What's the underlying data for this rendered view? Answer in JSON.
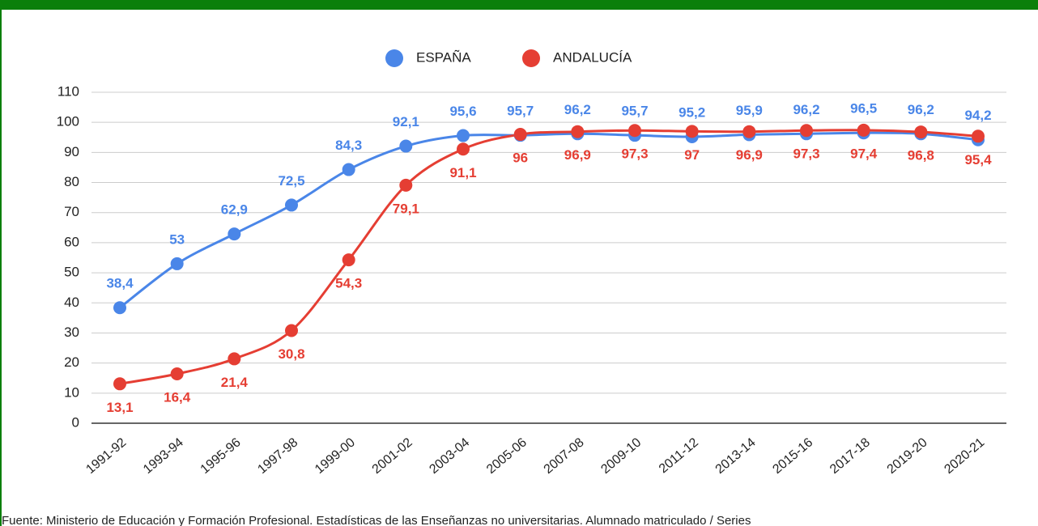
{
  "chart_data": {
    "type": "line",
    "categories": [
      "1991-92",
      "1993-94",
      "1995-96",
      "1997-98",
      "1999-00",
      "2001-02",
      "2003-04",
      "2005-06",
      "2007-08",
      "2009-10",
      "2011-12",
      "2013-14",
      "2015-16",
      "2017-18",
      "2019-20",
      "2020-21"
    ],
    "series": [
      {
        "name": "ESPAÑA",
        "color": "#4a86e8",
        "values": [
          38.4,
          53,
          62.9,
          72.5,
          84.3,
          92.1,
          95.6,
          95.7,
          96.2,
          95.7,
          95.2,
          95.9,
          96.2,
          96.5,
          96.2,
          94.2
        ],
        "value_labels": [
          "38,4",
          "53",
          "62,9",
          "72,5",
          "84,3",
          "92,1",
          "95,6",
          "95,7",
          "96,2",
          "95,7",
          "95,2",
          "95,9",
          "96,2",
          "96,5",
          "96,2",
          "94,2"
        ]
      },
      {
        "name": "ANDALUCÍA",
        "color": "#e53e33",
        "values": [
          13.1,
          16.4,
          21.4,
          30.8,
          54.3,
          79.1,
          91.1,
          96,
          96.9,
          97.3,
          97,
          96.9,
          97.3,
          97.4,
          96.8,
          95.4
        ],
        "value_labels": [
          "13,1",
          "16,4",
          "21,4",
          "30,8",
          "54,3",
          "79,1",
          "91,1",
          "96",
          "96,9",
          "97,3",
          "97",
          "96,9",
          "97,3",
          "97,4",
          "96,8",
          "95,4"
        ]
      }
    ],
    "ylim": [
      0,
      110
    ],
    "yticks": [
      0,
      10,
      20,
      30,
      40,
      50,
      60,
      70,
      80,
      90,
      100,
      110
    ],
    "grid": true,
    "legend": "top",
    "source": "Fuente: Ministerio de Educación y Formación Profesional. Estadísticas de las Enseñanzas no universitarias. Alumnado matriculado / Series"
  }
}
